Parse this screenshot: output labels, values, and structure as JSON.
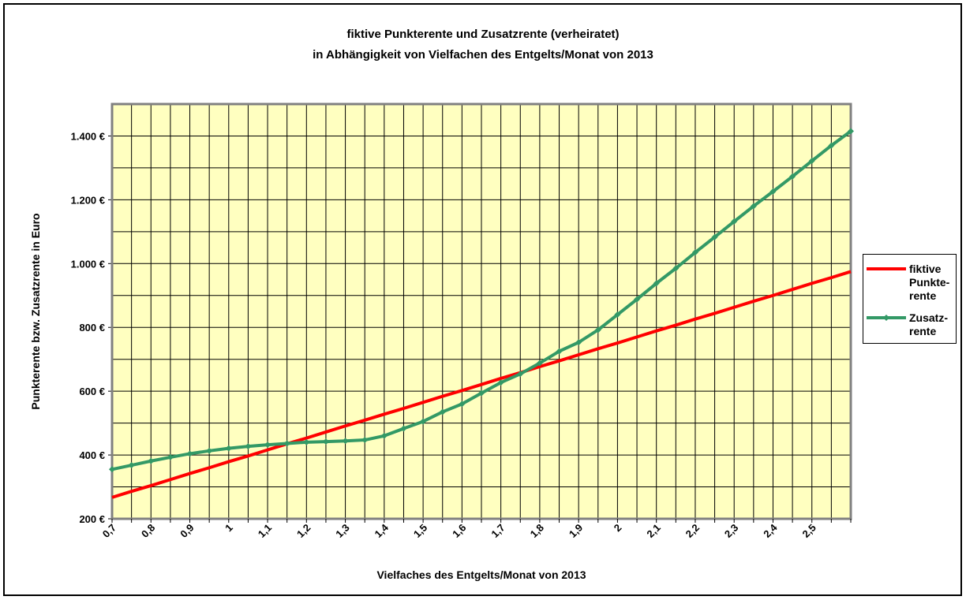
{
  "chart_data": {
    "type": "line",
    "title": "fiktive Punkterente und Zusatzrente (verheiratet)",
    "subtitle": "in Abhängigkeit von Vielfachen des Entgelts/Monat von 2013",
    "x_label": "Vielfaches des Entgelts/Monat von 2013",
    "y_label": "Punkterente bzw. Zusatzrente in Euro",
    "categories": [
      "0,7",
      null,
      "0,8",
      null,
      "0,9",
      null,
      "1",
      null,
      "1,1",
      null,
      "1,2",
      null,
      "1,3",
      null,
      "1,4",
      null,
      "1,5",
      null,
      "1,6",
      null,
      "1,7",
      null,
      "1,8",
      null,
      "1,9",
      null,
      "2",
      null,
      "2,1",
      null,
      "2,2",
      null,
      "2,3",
      null,
      "2,4",
      null,
      "2,5",
      null,
      null
    ],
    "series": [
      {
        "name": "fiktive\nPunkte-\nrente",
        "color": "#ff0000",
        "markers": false,
        "values": [
          267,
          286,
          304,
          323,
          342,
          360,
          379,
          397,
          416,
          435,
          453,
          472,
          491,
          509,
          528,
          546,
          565,
          584,
          602,
          621,
          640,
          658,
          677,
          695,
          714,
          733,
          751,
          770,
          789,
          807,
          826,
          844,
          863,
          882,
          900,
          919,
          938,
          956,
          975
        ]
      },
      {
        "name": "Zusatz-\nrente",
        "color": "#339966",
        "markers": true,
        "values": [
          355,
          368,
          381,
          393,
          404,
          413,
          421,
          427,
          432,
          436,
          440,
          442,
          444,
          447,
          460,
          483,
          505,
          535,
          560,
          594,
          627,
          654,
          688,
          725,
          753,
          792,
          840,
          888,
          938,
          985,
          1035,
          1083,
          1132,
          1180,
          1226,
          1273,
          1322,
          1370,
          1415
        ]
      }
    ],
    "ylim": [
      200,
      1500
    ],
    "yticks": [
      {
        "value": 200,
        "label": "200 €"
      },
      {
        "value": 400,
        "label": "400 €"
      },
      {
        "value": 600,
        "label": "600 €"
      },
      {
        "value": 800,
        "label": "800 €"
      },
      {
        "value": 1000,
        "label": "1.000 €"
      },
      {
        "value": 1200,
        "label": "1.200 €"
      },
      {
        "value": 1400,
        "label": "1.400 €"
      }
    ],
    "yminor_ticks": [
      300,
      500,
      700,
      900,
      1100,
      1300,
      1500
    ],
    "grid": true,
    "plot_background": "#ffffc0",
    "legend": "right"
  }
}
